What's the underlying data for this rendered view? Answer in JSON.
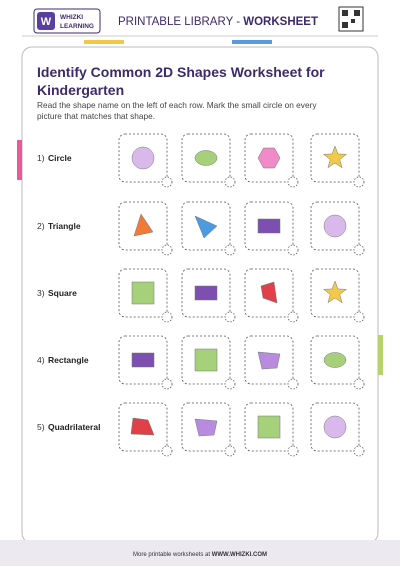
{
  "header": {
    "brand": [
      "WHIZKI",
      "LEARNING"
    ],
    "library": "PRINTABLE LIBRARY - ",
    "section": "WORKSHEET"
  },
  "title": [
    "Identify Common 2D Shapes Worksheet for",
    "Kindergarten"
  ],
  "instructions": [
    "Read the shape name on the left of each row. Mark the small circle on every",
    "picture that matches that shape."
  ],
  "rows": [
    {
      "number": "1)",
      "label": "Circle"
    },
    {
      "number": "2)",
      "label": "Triangle"
    },
    {
      "number": "3)",
      "label": "Square"
    },
    {
      "number": "4)",
      "label": "Rectangle"
    },
    {
      "number": "5)",
      "label": "Quadrilateral"
    }
  ],
  "footer": {
    "text": "More printable worksheets at ",
    "link": "WWW.WHIZKI.COM"
  }
}
